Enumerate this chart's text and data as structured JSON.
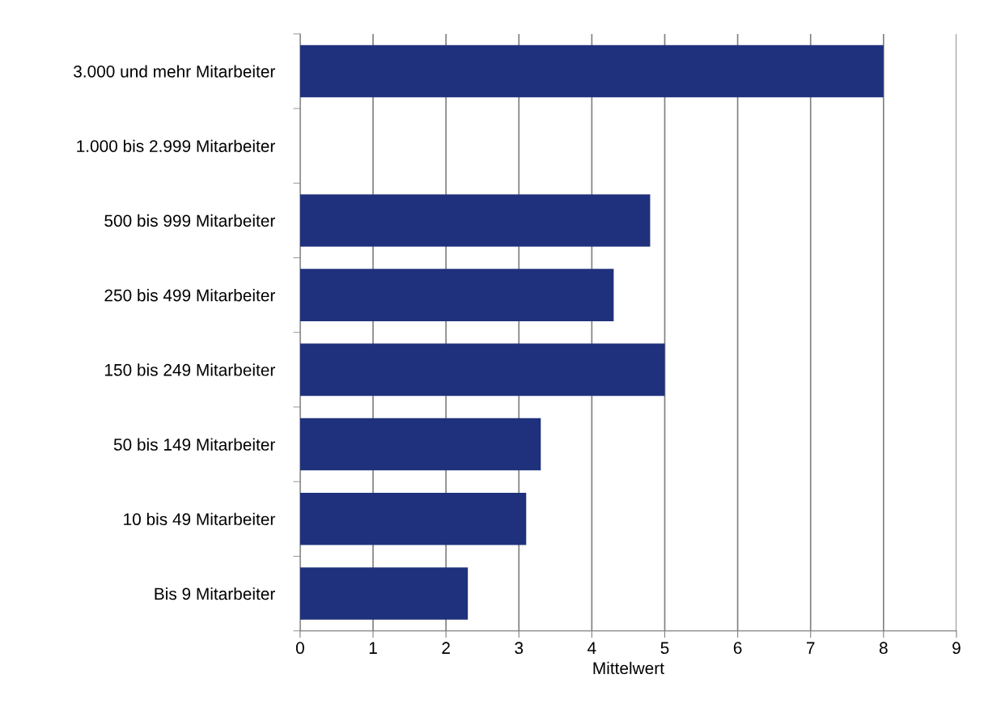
{
  "chart_data": {
    "type": "bar",
    "orientation": "horizontal",
    "xlabel": "Mittelwert",
    "categories": [
      "3.000 und mehr Mitarbeiter",
      "1.000 bis 2.999 Mitarbeiter",
      "500 bis 999 Mitarbeiter",
      "250 bis 499 Mitarbeiter",
      "150 bis 249 Mitarbeiter",
      "50 bis 149 Mitarbeiter",
      "10 bis 49 Mitarbeiter",
      "Bis 9 Mitarbeiter"
    ],
    "values": [
      8.0,
      null,
      4.8,
      4.3,
      5.0,
      3.3,
      3.1,
      2.3
    ],
    "color": "#1f317c",
    "xlim": [
      0,
      9
    ],
    "xticks": [
      0,
      1,
      2,
      3,
      4,
      5,
      6,
      7,
      8,
      9
    ],
    "grid": "x"
  }
}
